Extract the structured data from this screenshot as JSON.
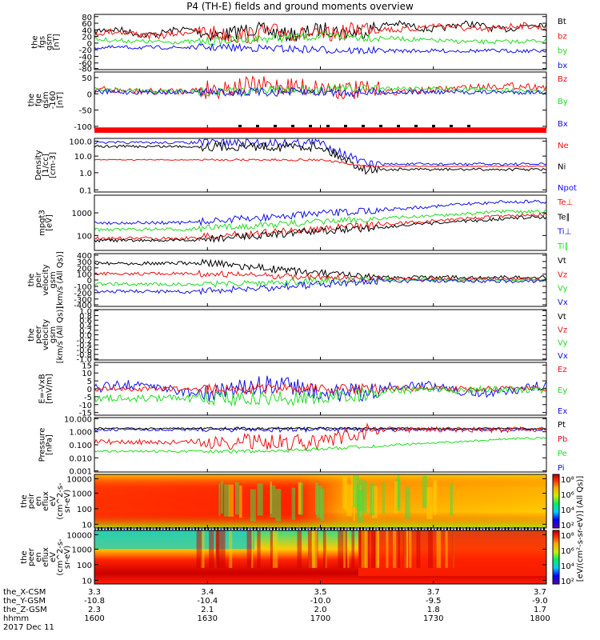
{
  "title": "P4 (TH-E) fields and ground moments overview",
  "colors": {
    "black": "#000000",
    "red": "#ee1111",
    "green": "#22dd22",
    "blue": "#1111ee",
    "bar": "#ff0000"
  },
  "panels": [
    {
      "id": "fgs",
      "ylabel_lines": [
        "the",
        "fgs",
        "gsm",
        "[nT]"
      ],
      "ylim": [
        -80,
        80
      ],
      "ticks": [
        "80",
        "60",
        "40",
        "20",
        "0",
        "-20",
        "-40",
        "-60",
        "-80"
      ],
      "legend": [
        {
          "label": "Bt",
          "color": "black"
        },
        {
          "label": "bz",
          "color": "red"
        },
        {
          "label": "by",
          "color": "green"
        },
        {
          "label": "bx",
          "color": "blue"
        }
      ]
    },
    {
      "id": "fge",
      "ylabel_lines": [
        "the",
        "fge",
        "gsm",
        "-160",
        "[nT]"
      ],
      "ylim": [
        -130,
        60
      ],
      "ticks": [
        "50",
        "0",
        "-50",
        "-100"
      ],
      "legend": [
        {
          "label": "Bz",
          "color": "red"
        },
        {
          "label": "By",
          "color": "green"
        },
        {
          "label": "Bx",
          "color": "blue"
        }
      ]
    },
    {
      "id": "density",
      "ylabel_lines": [
        "Density",
        "[1/cc]",
        "[cm-3]"
      ],
      "ylim": [
        0.1,
        100
      ],
      "ticks": [
        "100.0",
        "10.0",
        "1.0",
        "0.1"
      ],
      "legend": [
        {
          "label": "Ne",
          "color": "red"
        },
        {
          "label": "Ni",
          "color": "black"
        },
        {
          "label": "Npot",
          "color": "blue"
        }
      ]
    },
    {
      "id": "temp",
      "ylabel_lines": [
        "mpgt3",
        "[eV]"
      ],
      "ylim": [
        30,
        3000
      ],
      "ticks": [
        "1000",
        "100"
      ],
      "legend": [
        {
          "label": "Te⊥",
          "color": "red"
        },
        {
          "label": "Te∥",
          "color": "black"
        },
        {
          "label": "Ti⊥",
          "color": "blue"
        },
        {
          "label": "Ti∥",
          "color": "green"
        }
      ]
    },
    {
      "id": "peirv",
      "ylabel_lines": [
        "the",
        "peir",
        "velocity",
        "gsm",
        "[km/s (All Qs)]"
      ],
      "ylim": [
        -400,
        400
      ],
      "ticks": [
        "400",
        "300",
        "200",
        "100",
        "0",
        "-100",
        "-200",
        "-300",
        "-400"
      ],
      "legend": [
        {
          "label": "Vt",
          "color": "black"
        },
        {
          "label": "Vz",
          "color": "red"
        },
        {
          "label": "Vy",
          "color": "green"
        },
        {
          "label": "Vx",
          "color": "blue"
        }
      ]
    },
    {
      "id": "peerv",
      "ylabel_lines": [
        "the",
        "peer",
        "velocity",
        "gsm",
        "[km/s (All Qs)]"
      ],
      "ylim": [
        -1,
        1
      ],
      "ticks": [
        "1.0",
        "0.8",
        "0.6",
        "0.4",
        "0.2",
        "0.0",
        "-0.2",
        "-0.4",
        "-0.6",
        "-0.8",
        "-1.0"
      ],
      "legend": [
        {
          "label": "Vt",
          "color": "black"
        },
        {
          "label": "Vz",
          "color": "red"
        },
        {
          "label": "Vy",
          "color": "green"
        },
        {
          "label": "Vx",
          "color": "blue"
        }
      ]
    },
    {
      "id": "efield",
      "ylabel_lines": [
        "E=-VxB",
        "[mV/m]"
      ],
      "ylim": [
        -15,
        15
      ],
      "ticks": [
        "15",
        "10",
        "5",
        "0",
        "-5",
        "-10",
        "-15"
      ],
      "legend": [
        {
          "label": "Ez",
          "color": "red"
        },
        {
          "label": "Ey",
          "color": "green"
        },
        {
          "label": "Ex",
          "color": "blue"
        }
      ]
    },
    {
      "id": "pressure",
      "ylabel_lines": [
        "Pressure",
        "[nPa]"
      ],
      "ylim": [
        0.001,
        10
      ],
      "ticks": [
        "10.000",
        "1.000",
        "0.100",
        "0.010",
        "0.001"
      ],
      "legend": [
        {
          "label": "Pt",
          "color": "black"
        },
        {
          "label": "Pb",
          "color": "red"
        },
        {
          "label": "Pe",
          "color": "green"
        },
        {
          "label": "Pi",
          "color": "blue"
        }
      ]
    },
    {
      "id": "peir_spec",
      "ylabel_lines": [
        "the",
        "peir",
        "en",
        "eflux",
        "eV",
        "(cm^2-s-",
        "sr-eV)"
      ],
      "ticks": [
        "10000",
        "1000",
        "100",
        "10"
      ]
    },
    {
      "id": "peer_spec",
      "ylabel_lines": [
        "the",
        "peer",
        "en",
        "eflux",
        "eV",
        "(cm^2-s-",
        "sr-eV)"
      ],
      "ticks": [
        "10000",
        "1000",
        "100",
        "10"
      ]
    }
  ],
  "colorbars": [
    {
      "ticks": [
        "10⁸",
        "10⁶",
        "10⁴",
        "10²"
      ]
    },
    {
      "ticks": [
        "10⁸",
        "10⁶",
        "10⁴",
        "10²"
      ]
    }
  ],
  "colorbar_label": "[eV/(cm²-s-sr-eV)] (All Qs)]",
  "footer": {
    "row_labels": [
      "the_X-CSM",
      "the_Y-GSM",
      "the_Z-GSM",
      "hhmm",
      "2017 Dec 11"
    ],
    "columns": [
      [
        "3.3",
        "-10.8",
        "2.3",
        "1600"
      ],
      [
        "3.4",
        "-10.4",
        "2.1",
        "1630"
      ],
      [
        "3.5",
        "-10.0",
        "2.0",
        "1700"
      ],
      [
        "3.7",
        "-9.5",
        "1.8",
        "1730"
      ],
      [
        "3.7",
        "-9.0",
        "1.7",
        "1800"
      ]
    ]
  },
  "chart_data": {
    "type": "line",
    "x_label": "hhmm",
    "x_ticks": [
      "1600",
      "1630",
      "1700",
      "1730",
      "1800"
    ],
    "series_by_panel": {
      "fgs": [
        {
          "name": "Bt",
          "approx_values": [
            45,
            50,
            60,
            55,
            65,
            50,
            60,
            45,
            50,
            48
          ]
        },
        {
          "name": "bz",
          "approx_values": [
            40,
            45,
            55,
            50,
            60,
            45,
            55,
            45,
            48,
            47
          ]
        },
        {
          "name": "by",
          "approx_values": [
            5,
            0,
            10,
            -10,
            5,
            0,
            5,
            15,
            10,
            8
          ]
        },
        {
          "name": "bx",
          "approx_values": [
            -10,
            -15,
            -25,
            -5,
            -20,
            -20,
            -15,
            -15,
            -15,
            -15
          ]
        }
      ],
      "density": [
        {
          "name": "Ne",
          "approx_values": [
            7,
            7,
            7,
            7,
            7,
            1,
            1.5,
            1.5,
            2,
            2
          ]
        },
        {
          "name": "Ni",
          "approx_values": [
            30,
            25,
            5,
            30,
            40,
            2,
            1,
            0.8,
            0.7,
            0.7
          ]
        },
        {
          "name": "Npot",
          "approx_values": [
            60,
            50,
            10,
            50,
            60,
            3,
            2,
            2,
            3,
            3
          ]
        }
      ]
    }
  }
}
